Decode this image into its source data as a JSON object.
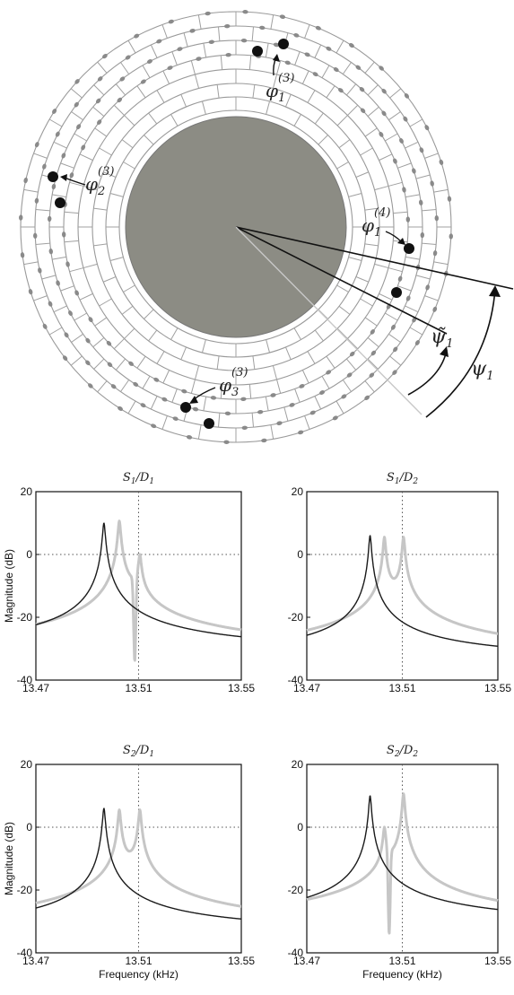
{
  "diagram": {
    "labels": [
      {
        "id": "phi1_3",
        "sym": "φ",
        "sub": "1",
        "sup": "(3)"
      },
      {
        "id": "phi2_3",
        "sym": "φ",
        "sub": "2",
        "sup": "(3)"
      },
      {
        "id": "phi1_4",
        "sym": "φ",
        "sub": "1",
        "sup": "(4)"
      },
      {
        "id": "phi3_3",
        "sym": "φ",
        "sub": "3",
        "sup": "(3)"
      },
      {
        "id": "psi1_tilde",
        "sym": "ψ̃",
        "sub": "1",
        "sup": ""
      },
      {
        "id": "psi1",
        "sym": "ψ",
        "sub": "1",
        "sup": ""
      }
    ]
  },
  "chart_data": [
    {
      "type": "line",
      "title": "S1/D1",
      "xlabel": "",
      "ylabel": "Magnitude (dB)",
      "xlim": [
        13.47,
        13.55
      ],
      "ylim": [
        -40,
        20
      ],
      "xticks": [
        "13.47",
        "13.51",
        "13.55"
      ],
      "yticks": [
        "20",
        "0",
        "-20",
        "-40"
      ],
      "grid": "dotted lines at x=13.51 and y=0",
      "series": [
        {
          "color": "#1a1a1a",
          "peaks": [
            {
              "x": 13.4965,
              "y": 10
            }
          ],
          "notch": null,
          "floor": -33
        },
        {
          "color": "#c6c6c6",
          "peaks": [
            {
              "x": 13.5025,
              "y": 10.5
            },
            {
              "x": 13.5105,
              "y": -2
            }
          ],
          "notch": {
            "x": 13.5085,
            "y": -34
          },
          "floor": -33
        }
      ]
    },
    {
      "type": "line",
      "title": "S1/D2",
      "xlabel": "",
      "ylabel": "",
      "xlim": [
        13.47,
        13.55
      ],
      "ylim": [
        -40,
        20
      ],
      "xticks": [
        "13.47",
        "13.51",
        "13.55"
      ],
      "yticks": [
        "20",
        "0",
        "-20",
        "-40"
      ],
      "grid": "dotted lines at x=13.51 and y=0",
      "series": [
        {
          "color": "#1a1a1a",
          "peaks": [
            {
              "x": 13.4965,
              "y": 6
            }
          ],
          "notch": null,
          "floor": -35
        },
        {
          "color": "#c6c6c6",
          "peaks": [
            {
              "x": 13.5025,
              "y": 5
            },
            {
              "x": 13.5105,
              "y": 5
            }
          ],
          "notch": null,
          "floor": -35
        }
      ]
    },
    {
      "type": "line",
      "title": "S2/D1",
      "xlabel": "Frequency (kHz)",
      "ylabel": "Magnitude (dB)",
      "xlim": [
        13.47,
        13.55
      ],
      "ylim": [
        -40,
        20
      ],
      "xticks": [
        "13.47",
        "13.51",
        "13.55"
      ],
      "yticks": [
        "20",
        "0",
        "-20",
        "-40"
      ],
      "grid": "dotted lines at x=13.51 and y=0",
      "series": [
        {
          "color": "#1a1a1a",
          "peaks": [
            {
              "x": 13.4965,
              "y": 6
            }
          ],
          "notch": null,
          "floor": -35
        },
        {
          "color": "#c6c6c6",
          "peaks": [
            {
              "x": 13.5025,
              "y": 5
            },
            {
              "x": 13.5105,
              "y": 5
            }
          ],
          "notch": null,
          "floor": -35
        }
      ]
    },
    {
      "type": "line",
      "title": "S2/D2",
      "xlabel": "Frequency (kHz)",
      "ylabel": "",
      "xlim": [
        13.47,
        13.55
      ],
      "ylim": [
        -40,
        20
      ],
      "xticks": [
        "13.47",
        "13.51",
        "13.55"
      ],
      "yticks": [
        "20",
        "0",
        "-20",
        "-40"
      ],
      "grid": "dotted lines at x=13.51 and y=0",
      "series": [
        {
          "color": "#1a1a1a",
          "peaks": [
            {
              "x": 13.4965,
              "y": 10
            }
          ],
          "notch": null,
          "floor": -33
        },
        {
          "color": "#c6c6c6",
          "peaks": [
            {
              "x": 13.5025,
              "y": -2
            },
            {
              "x": 13.5105,
              "y": 10.5
            }
          ],
          "notch": {
            "x": 13.5045,
            "y": -34
          },
          "floor": -33
        }
      ]
    }
  ]
}
